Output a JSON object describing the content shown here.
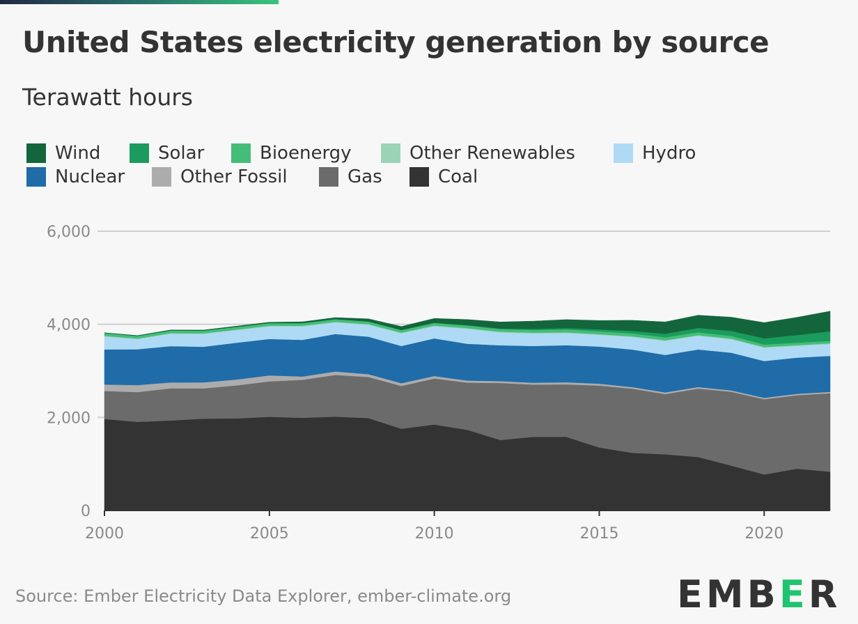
{
  "title": "United States electricity generation by source",
  "subtitle": "Terawatt hours",
  "source": "Source: Ember Electricity Data Explorer, ember-climate.org",
  "logo": "EMBER",
  "colors": {
    "Coal": "#333333",
    "Gas": "#6b6b6b",
    "Other Fossil": "#acacac",
    "Nuclear": "#1f6ca8",
    "Hydro": "#afdaf5",
    "Other Renewables": "#9bd3b7",
    "Bioenergy": "#45bd78",
    "Solar": "#1b9b5d",
    "Wind": "#13663c",
    "logo_accent": "#1fc46e"
  },
  "legend": {
    "rows": [
      [
        "Wind",
        "Solar",
        "Bioenergy",
        "Other Renewables",
        "Hydro"
      ],
      [
        "Nuclear",
        "Other Fossil",
        "Gas",
        "Coal"
      ]
    ]
  },
  "chart_data": {
    "type": "area",
    "stacked": true,
    "x": [
      2000,
      2001,
      2002,
      2003,
      2004,
      2005,
      2006,
      2007,
      2008,
      2009,
      2010,
      2011,
      2012,
      2013,
      2014,
      2015,
      2016,
      2017,
      2018,
      2019,
      2020,
      2021,
      2022
    ],
    "series": [
      {
        "name": "Coal",
        "values": [
          1966,
          1904,
          1933,
          1974,
          1978,
          2013,
          1991,
          2016,
          1986,
          1756,
          1847,
          1733,
          1514,
          1581,
          1582,
          1352,
          1239,
          1206,
          1149,
          965,
          774,
          898,
          832
        ]
      },
      {
        "name": "Gas",
        "values": [
          601,
          639,
          691,
          649,
          710,
          761,
          816,
          897,
          883,
          921,
          988,
          1014,
          1226,
          1124,
          1127,
          1333,
          1378,
          1296,
          1469,
          1586,
          1617,
          1579,
          1687
        ]
      },
      {
        "name": "Other Fossil",
        "values": [
          140,
          152,
          127,
          130,
          127,
          129,
          72,
          73,
          60,
          58,
          55,
          45,
          40,
          40,
          45,
          40,
          35,
          35,
          35,
          30,
          30,
          30,
          30
        ]
      },
      {
        "name": "Nuclear",
        "values": [
          754,
          769,
          780,
          764,
          789,
          782,
          787,
          806,
          806,
          799,
          807,
          790,
          769,
          789,
          797,
          797,
          806,
          805,
          807,
          809,
          790,
          778,
          772
        ]
      },
      {
        "name": "Hydro",
        "values": [
          276,
          217,
          264,
          276,
          268,
          270,
          289,
          247,
          254,
          273,
          260,
          319,
          276,
          269,
          259,
          249,
          268,
          300,
          292,
          287,
          285,
          251,
          255
        ]
      },
      {
        "name": "Other Renewables",
        "values": [
          15,
          14,
          14,
          14,
          15,
          15,
          15,
          15,
          15,
          15,
          15,
          17,
          16,
          17,
          17,
          17,
          16,
          16,
          16,
          16,
          16,
          16,
          16
        ]
      },
      {
        "name": "Bioenergy",
        "values": [
          60,
          55,
          58,
          58,
          58,
          56,
          56,
          56,
          56,
          55,
          57,
          58,
          57,
          60,
          64,
          64,
          63,
          63,
          62,
          58,
          55,
          54,
          52
        ]
      },
      {
        "name": "Solar",
        "values": [
          1,
          1,
          1,
          1,
          1,
          1,
          1,
          1,
          2,
          2,
          3,
          6,
          12,
          21,
          28,
          39,
          54,
          77,
          93,
          108,
          132,
          164,
          204
        ]
      },
      {
        "name": "Wind",
        "values": [
          6,
          7,
          10,
          11,
          14,
          18,
          26,
          34,
          55,
          74,
          95,
          120,
          141,
          168,
          182,
          191,
          227,
          254,
          273,
          295,
          338,
          380,
          435
        ]
      }
    ],
    "ylim": [
      0,
      6000
    ],
    "yticks": [
      0,
      2000,
      4000,
      6000
    ],
    "ytick_labels": [
      "0",
      "2,000",
      "4,000",
      "6,000"
    ],
    "xticks": [
      2000,
      2005,
      2010,
      2015,
      2020
    ],
    "xtick_labels": [
      "2000",
      "2005",
      "2010",
      "2015",
      "2020"
    ],
    "grid": true,
    "legend_position": "top"
  }
}
